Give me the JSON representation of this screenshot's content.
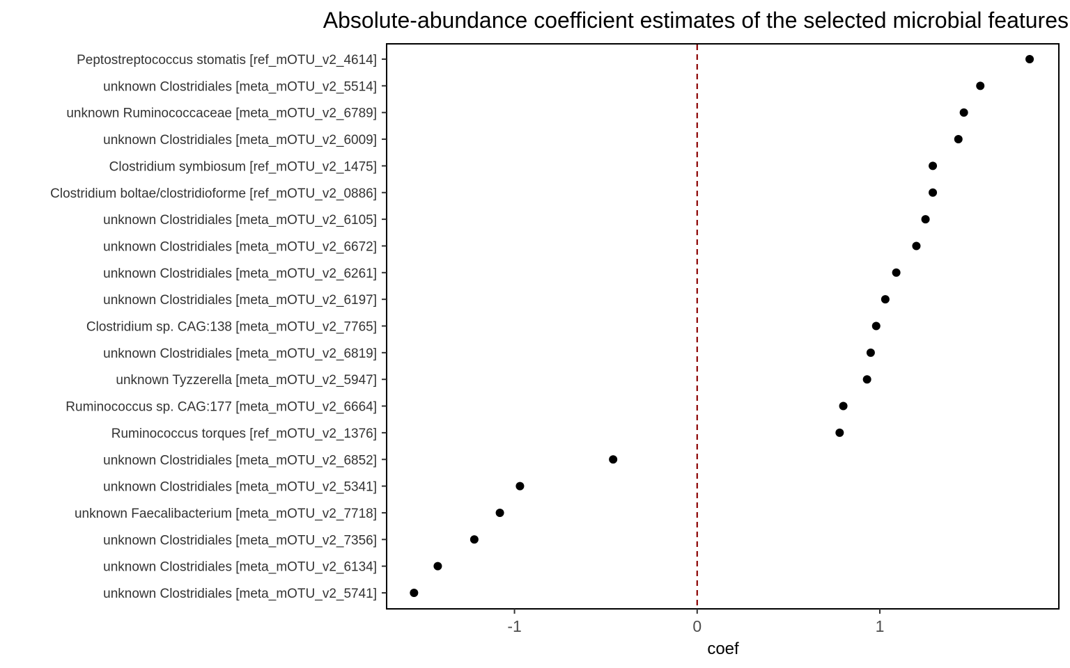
{
  "chart_data": {
    "type": "scatter",
    "title": "Absolute-abundance coefficient estimates of the selected microbial features",
    "xlabel": "coef",
    "ylabel": "",
    "xlim": [
      -1.7,
      1.98
    ],
    "xticks": [
      -1,
      0,
      1
    ],
    "xtick_labels": [
      "-1",
      "0",
      "1"
    ],
    "reference_line": {
      "x": 0,
      "style": "dashed",
      "color": "#8b0000"
    },
    "grid": false,
    "point_color": "#000000",
    "categories": [
      "Peptostreptococcus stomatis [ref_mOTU_v2_4614]",
      "unknown Clostridiales [meta_mOTU_v2_5514]",
      "unknown Ruminococcaceae [meta_mOTU_v2_6789]",
      "unknown Clostridiales [meta_mOTU_v2_6009]",
      "Clostridium symbiosum [ref_mOTU_v2_1475]",
      "Clostridium boltae/clostridioforme [ref_mOTU_v2_0886]",
      "unknown Clostridiales [meta_mOTU_v2_6105]",
      "unknown Clostridiales [meta_mOTU_v2_6672]",
      "unknown Clostridiales [meta_mOTU_v2_6261]",
      "unknown Clostridiales [meta_mOTU_v2_6197]",
      "Clostridium sp. CAG:138 [meta_mOTU_v2_7765]",
      "unknown Clostridiales [meta_mOTU_v2_6819]",
      "unknown Tyzzerella [meta_mOTU_v2_5947]",
      "Ruminococcus sp. CAG:177 [meta_mOTU_v2_6664]",
      "Ruminococcus torques [ref_mOTU_v2_1376]",
      "unknown Clostridiales [meta_mOTU_v2_6852]",
      "unknown Clostridiales [meta_mOTU_v2_5341]",
      "unknown Faecalibacterium [meta_mOTU_v2_7718]",
      "unknown Clostridiales [meta_mOTU_v2_7356]",
      "unknown Clostridiales [meta_mOTU_v2_6134]",
      "unknown Clostridiales [meta_mOTU_v2_5741]"
    ],
    "values": [
      1.82,
      1.55,
      1.46,
      1.43,
      1.29,
      1.29,
      1.25,
      1.2,
      1.09,
      1.03,
      0.98,
      0.95,
      0.93,
      0.8,
      0.78,
      -0.46,
      -0.97,
      -1.08,
      -1.22,
      -1.42,
      -1.55
    ]
  }
}
